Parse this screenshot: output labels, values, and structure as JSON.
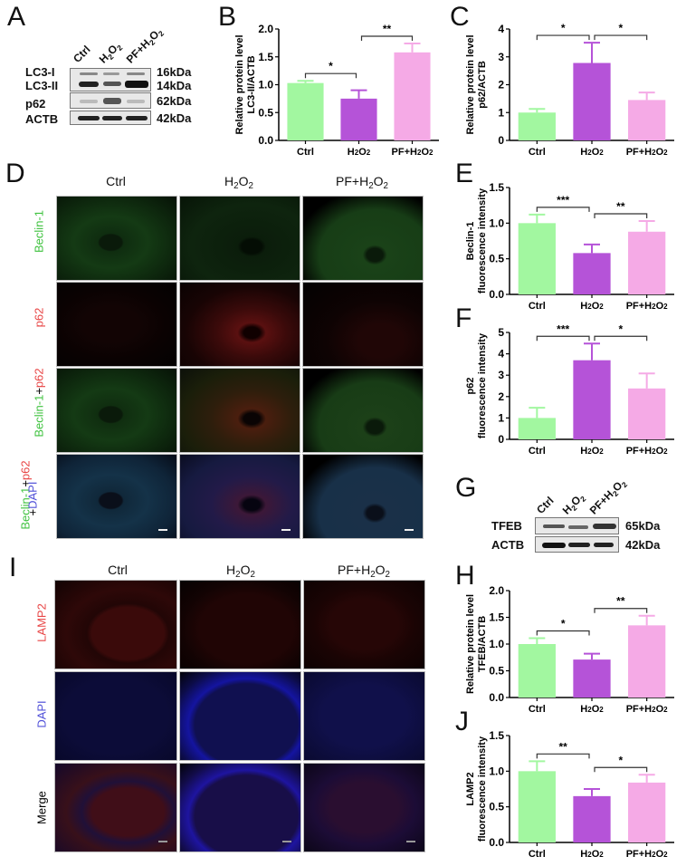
{
  "panels": {
    "A": {
      "letter": "A",
      "lanes": [
        "Ctrl",
        "H2O2",
        "PF+H2O2"
      ],
      "rows": [
        {
          "label": "LC3-I",
          "kda": "16kDa"
        },
        {
          "label": "LC3-II",
          "kda": "14kDa"
        },
        {
          "label": "p62",
          "kda": "62kDa"
        },
        {
          "label": "ACTB",
          "kda": "42kDa"
        }
      ]
    },
    "D": {
      "letter": "D",
      "columns": [
        "Ctrl",
        "H2O2",
        "PF+H2O2"
      ],
      "rows": [
        "Beclin-1",
        "p62",
        "Beclin-1+p62",
        "Beclin-1+p62+DAPI"
      ]
    },
    "G": {
      "letter": "G",
      "lanes": [
        "Ctrl",
        "H2O2",
        "PF+H2O2"
      ],
      "rows": [
        {
          "label": "TFEB",
          "kda": "65kDa"
        },
        {
          "label": "ACTB",
          "kda": "42kDa"
        }
      ]
    },
    "I": {
      "letter": "I",
      "columns": [
        "Ctrl",
        "H2O2",
        "PF+H2O2"
      ],
      "rows": [
        "LAMP2",
        "DAPI",
        "Merge"
      ]
    }
  },
  "colors": {
    "ctrl": "#a2f7a0",
    "h2o2": "#b553d8",
    "pf_h2o2": "#f5aae6",
    "beclin": "#3ec23e",
    "p62": "#e84545",
    "dapi": "#5050d8"
  },
  "chart_data": [
    {
      "panel": "B",
      "type": "bar",
      "categories": [
        "Ctrl",
        "H2O2",
        "PF+H2O2"
      ],
      "values": [
        1.03,
        0.75,
        1.58
      ],
      "errors": [
        0.04,
        0.15,
        0.16
      ],
      "ylabel": "Relative protein level LC3-II/ACTB",
      "ylabel_lines": [
        "Relative protein level",
        "LC3-II/ACTB"
      ],
      "ylim": [
        0,
        2.0
      ],
      "yticks": [
        "0.0",
        "0.5",
        "1.0",
        "1.5",
        "2.0"
      ],
      "significance": [
        {
          "from": 0,
          "to": 1,
          "label": "*"
        },
        {
          "from": 1,
          "to": 2,
          "label": "**"
        }
      ]
    },
    {
      "panel": "C",
      "type": "bar",
      "categories": [
        "Ctrl",
        "H2O2",
        "PF+H2O2"
      ],
      "values": [
        1.0,
        2.78,
        1.45
      ],
      "errors": [
        0.13,
        0.73,
        0.27
      ],
      "ylabel": "Relative protein level p62/ACTB",
      "ylabel_lines": [
        "Relative protein level",
        "p62/ACTB"
      ],
      "ylim": [
        0,
        4
      ],
      "yticks": [
        "0",
        "1",
        "2",
        "3",
        "4"
      ],
      "significance": [
        {
          "from": 0,
          "to": 1,
          "label": "*"
        },
        {
          "from": 1,
          "to": 2,
          "label": "*"
        }
      ]
    },
    {
      "panel": "E",
      "type": "bar",
      "categories": [
        "Ctrl",
        "H2O2",
        "PF+H2O2"
      ],
      "values": [
        1.0,
        0.58,
        0.88
      ],
      "errors": [
        0.12,
        0.12,
        0.15
      ],
      "ylabel": "Beclin-1 fluorescence intensity",
      "ylabel_lines": [
        "Beclin-1",
        "fluorescence intensity"
      ],
      "ylim": [
        0,
        1.5
      ],
      "yticks": [
        "0.0",
        "0.5",
        "1.0",
        "1.5"
      ],
      "significance": [
        {
          "from": 0,
          "to": 1,
          "label": "***"
        },
        {
          "from": 1,
          "to": 2,
          "label": "**"
        }
      ]
    },
    {
      "panel": "F",
      "type": "bar",
      "categories": [
        "Ctrl",
        "H2O2",
        "PF+H2O2"
      ],
      "values": [
        1.0,
        3.7,
        2.38
      ],
      "errors": [
        0.48,
        0.78,
        0.7
      ],
      "ylabel": "p62 fluorescence intensity",
      "ylabel_lines": [
        "p62",
        "fluorescence intensity"
      ],
      "ylim": [
        0,
        5
      ],
      "yticks": [
        "0",
        "1",
        "2",
        "3",
        "4",
        "5"
      ],
      "significance": [
        {
          "from": 0,
          "to": 1,
          "label": "***"
        },
        {
          "from": 1,
          "to": 2,
          "label": "*"
        }
      ]
    },
    {
      "panel": "H",
      "type": "bar",
      "categories": [
        "Ctrl",
        "H2O2",
        "PF+H2O2"
      ],
      "values": [
        1.0,
        0.71,
        1.35
      ],
      "errors": [
        0.11,
        0.11,
        0.18
      ],
      "ylabel": "Relative protein level TFEB/ACTB",
      "ylabel_lines": [
        "Relative protein level",
        "TFEB/ACTB"
      ],
      "ylim": [
        0,
        2.0
      ],
      "yticks": [
        "0.0",
        "0.5",
        "1.0",
        "1.5",
        "2.0"
      ],
      "significance": [
        {
          "from": 0,
          "to": 1,
          "label": "*"
        },
        {
          "from": 1,
          "to": 2,
          "label": "**"
        }
      ]
    },
    {
      "panel": "J",
      "type": "bar",
      "categories": [
        "Ctrl",
        "H2O2",
        "PF+H2O2"
      ],
      "values": [
        1.0,
        0.65,
        0.84
      ],
      "errors": [
        0.14,
        0.1,
        0.11
      ],
      "ylabel": "LAMP2 fluorescence intensity",
      "ylabel_lines": [
        "LAMP2",
        "fluorescence intensity"
      ],
      "ylim": [
        0,
        1.5
      ],
      "yticks": [
        "0.0",
        "0.5",
        "1.0",
        "1.5"
      ],
      "significance": [
        {
          "from": 0,
          "to": 1,
          "label": "**"
        },
        {
          "from": 1,
          "to": 2,
          "label": "*"
        }
      ]
    }
  ]
}
